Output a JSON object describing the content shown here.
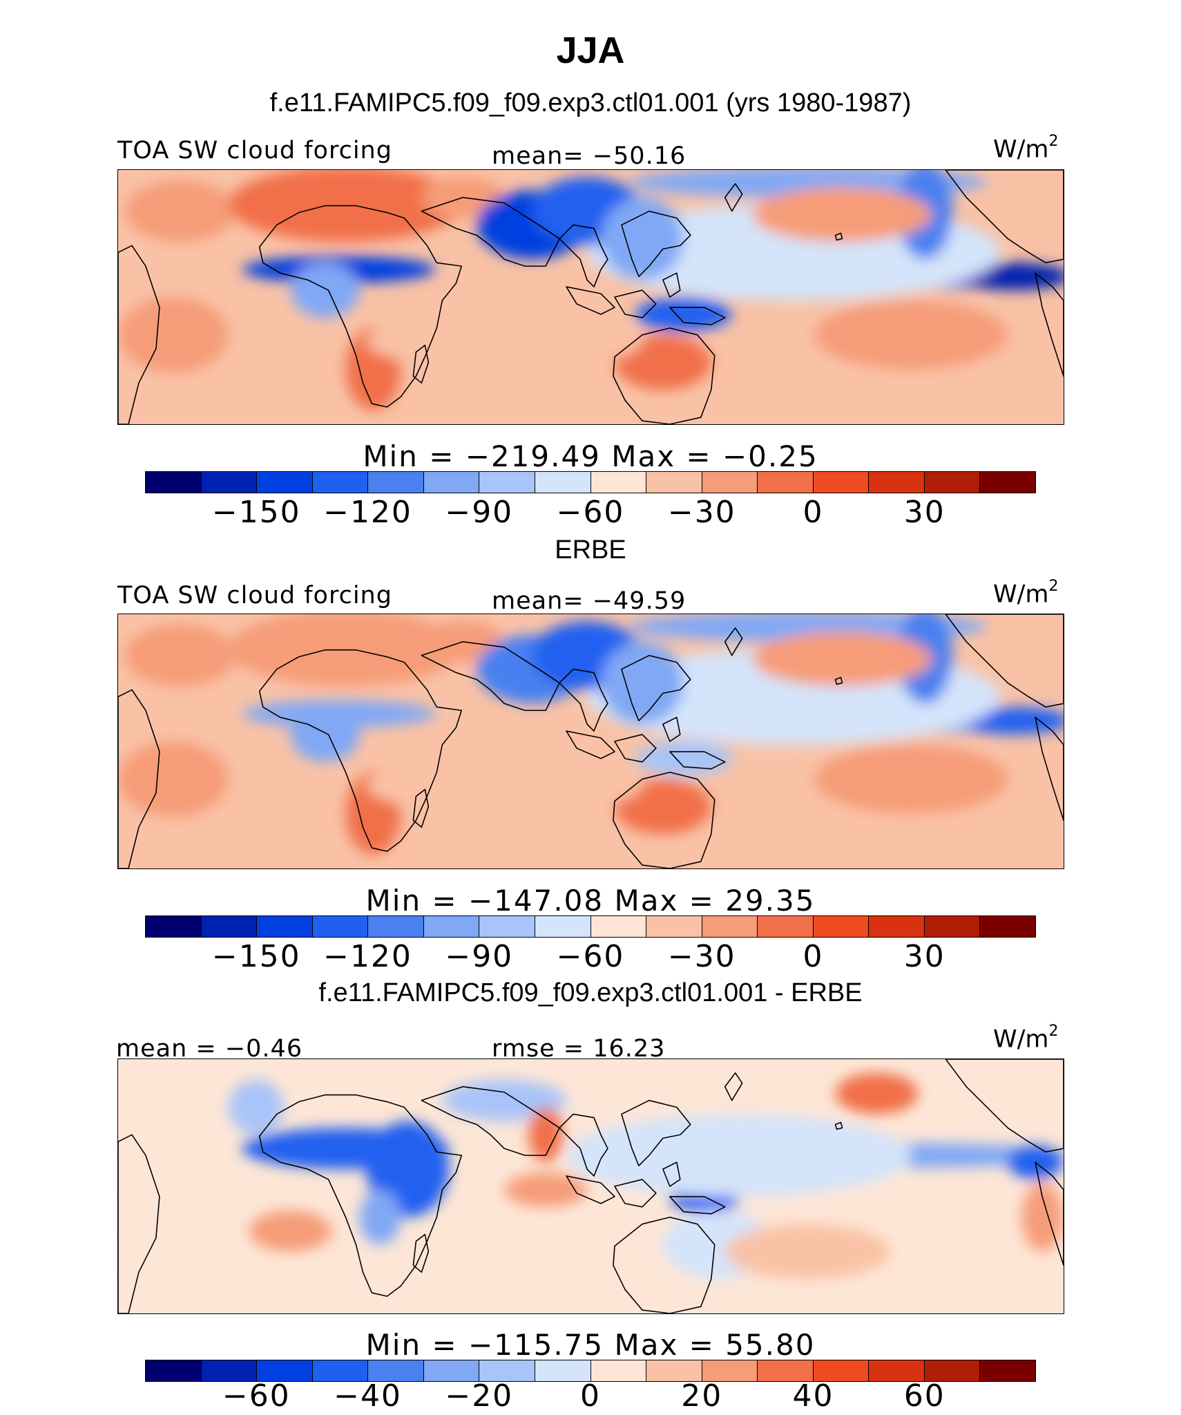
{
  "figure": {
    "title": "JJA",
    "colors": [
      "#000070",
      "#0022b0",
      "#0040e0",
      "#2060f0",
      "#4a80f0",
      "#80a8f5",
      "#a8c4f8",
      "#d4e4fa",
      "#fde6d6",
      "#f9c2a6",
      "#f69c78",
      "#f1704a",
      "#f04a20",
      "#d83210",
      "#b01e08",
      "#7a0000"
    ]
  },
  "panels": [
    {
      "id": "model",
      "heading": "f.e11.FAMIPC5.f09_f09.exp3.ctl01.001 (yrs 1980-1987)",
      "left_label": "TOA SW cloud forcing",
      "center_label": "mean=  −50.16",
      "units": "W/m",
      "units_exp": "2",
      "minmax": "Min  =  −219.49  Max  =    −0.25",
      "ticks": [
        "−150",
        "−120",
        "−90",
        "−60",
        "−30",
        "0",
        "30"
      ],
      "field_mean": -50.16,
      "field_min": -219.49,
      "field_max": -0.25
    },
    {
      "id": "obs",
      "heading": "ERBE",
      "left_label": "TOA SW cloud forcing",
      "center_label": "mean=  −49.59",
      "units": "W/m",
      "units_exp": "2",
      "minmax": "Min  =  −147.08  Max  =   29.35",
      "ticks": [
        "−150",
        "−120",
        "−90",
        "−60",
        "−30",
        "0",
        "30"
      ],
      "field_mean": -49.59,
      "field_min": -147.08,
      "field_max": 29.35
    },
    {
      "id": "diff",
      "heading": "f.e11.FAMIPC5.f09_f09.exp3.ctl01.001 - ERBE",
      "left_label": "mean  =   −0.46",
      "center_label": "rmse  =   16.23",
      "units": "W/m",
      "units_exp": "2",
      "minmax": "Min  =  −115.75  Max  =   55.80",
      "ticks": [
        "−60",
        "−40",
        "−20",
        "0",
        "20",
        "40",
        "60"
      ],
      "field_mean": -0.46,
      "field_rmse": 16.23,
      "field_min": -115.75,
      "field_max": 55.8
    }
  ]
}
